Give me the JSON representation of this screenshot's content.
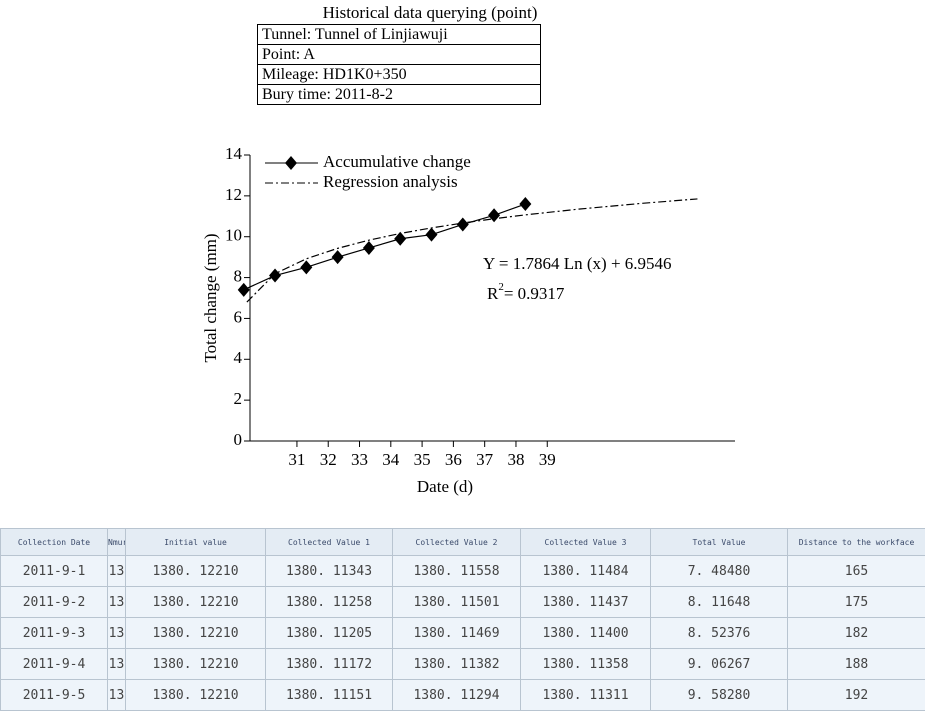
{
  "header": {
    "title": "Historical data querying (point)"
  },
  "info": [
    {
      "label": "Tunnel:",
      "value": "Tunnel of Linjiawuji"
    },
    {
      "label": "Point:",
      "value": "A"
    },
    {
      "label": "Mileage:",
      "value": "HD1K0+350"
    },
    {
      "label": "Bury time:",
      "value": "2011-8-2"
    }
  ],
  "chart_data": {
    "type": "line",
    "x_label": "Date (d)",
    "y_label": "Total change (mm)",
    "xlim": [
      29.5,
      45
    ],
    "xticks": [
      31,
      32,
      33,
      34,
      35,
      36,
      37,
      38,
      39
    ],
    "ylim": [
      0,
      14
    ],
    "yticks": [
      0,
      2,
      4,
      6,
      8,
      10,
      12,
      14
    ],
    "series": [
      {
        "name": "Accumulative change",
        "color": "#000000",
        "marker": "diamond",
        "dash": "solid",
        "x": [
          29.3,
          30.3,
          31.3,
          32.3,
          33.3,
          34.3,
          35.3,
          36.3,
          37.3,
          38.3
        ],
        "values": [
          7.4,
          8.1,
          8.5,
          9.0,
          9.45,
          9.9,
          10.1,
          10.6,
          11.05,
          11.6
        ]
      },
      {
        "name": "Regression analysis",
        "color": "#000000",
        "marker": "none",
        "dash": "dashdot",
        "x": [
          29.4,
          30.3,
          31.3,
          32.3,
          33.3,
          34.3,
          35.3,
          36.3,
          37.3,
          38.3,
          40,
          42,
          43.8
        ],
        "values": [
          6.8,
          8.19,
          8.92,
          9.43,
          9.83,
          10.16,
          10.43,
          10.67,
          10.88,
          11.07,
          11.35,
          11.63,
          11.85
        ]
      }
    ],
    "annotations": {
      "equation": "Y = 1.7864 Ln (x) + 6.9546",
      "r2_base": "R",
      "r2_sup": "2",
      "r2_rest": "= 0.9317"
    }
  },
  "table": {
    "columns": [
      "Collection Date",
      "Nmur",
      "Initial value",
      "Collected Value 1",
      "Collected Value 2",
      "Collected Value 3",
      "Total Value",
      "Distance to the workface"
    ],
    "rows": [
      [
        "2011-9-1",
        "13",
        "1380. 12210",
        "1380. 11343",
        "1380. 11558",
        "1380. 11484",
        "7. 48480",
        "165"
      ],
      [
        "2011-9-2",
        "13",
        "1380. 12210",
        "1380. 11258",
        "1380. 11501",
        "1380. 11437",
        "8. 11648",
        "175"
      ],
      [
        "2011-9-3",
        "13",
        "1380. 12210",
        "1380. 11205",
        "1380. 11469",
        "1380. 11400",
        "8. 52376",
        "182"
      ],
      [
        "2011-9-4",
        "13",
        "1380. 12210",
        "1380. 11172",
        "1380. 11382",
        "1380. 11358",
        "9. 06267",
        "188"
      ],
      [
        "2011-9-5",
        "13",
        "1380. 12210",
        "1380. 11151",
        "1380. 11294",
        "1380. 11311",
        "9. 58280",
        "192"
      ]
    ]
  }
}
